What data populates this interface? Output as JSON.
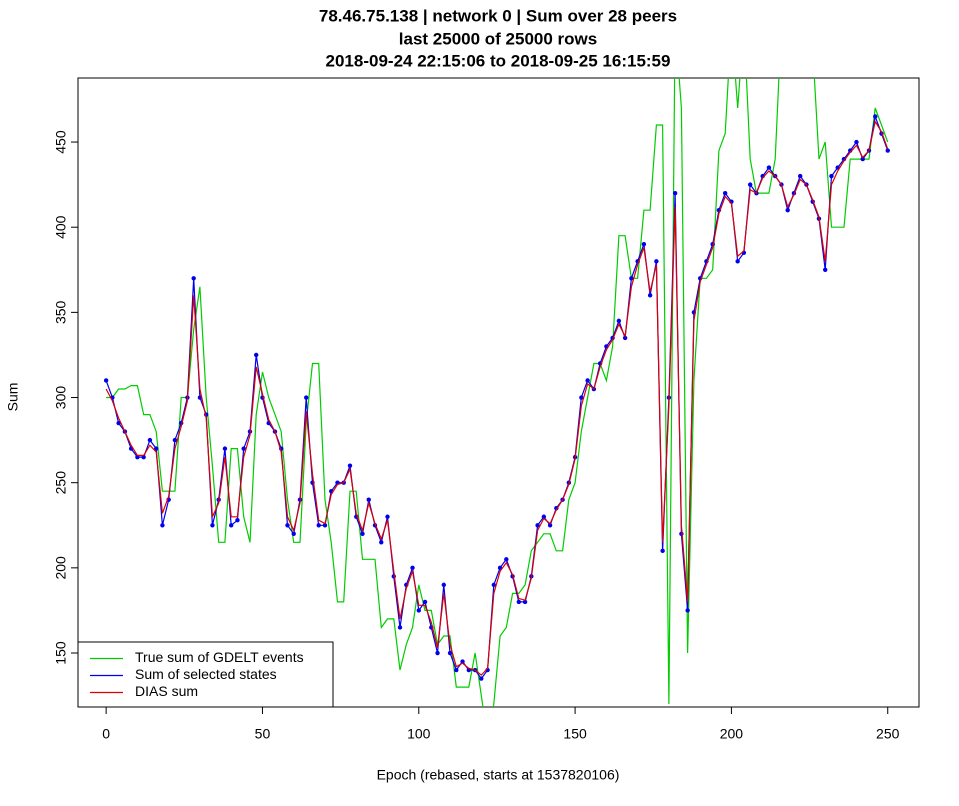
{
  "chart_data": {
    "type": "line",
    "title": [
      "78.46.75.138 | network 0 | Sum over 28 peers",
      "last 25000 of 25000 rows",
      "2018-09-24 22:15:06 to 2018-09-25 16:15:59"
    ],
    "xlabel": "Epoch (rebased, starts at 1537820106)",
    "ylabel": "Sum",
    "xlim": [
      -9,
      260
    ],
    "ylim": [
      118.3,
      487.6
    ],
    "xticks": [
      0,
      50,
      100,
      150,
      200,
      250
    ],
    "yticks": [
      150,
      200,
      250,
      300,
      350,
      400,
      450
    ],
    "legend": "bottom-left",
    "x": [
      0,
      2,
      4,
      6,
      8,
      10,
      12,
      14,
      16,
      18,
      20,
      22,
      24,
      26,
      28,
      30,
      32,
      34,
      36,
      38,
      40,
      42,
      44,
      46,
      48,
      50,
      52,
      54,
      56,
      58,
      60,
      62,
      64,
      66,
      68,
      70,
      72,
      74,
      76,
      78,
      80,
      82,
      84,
      86,
      88,
      90,
      92,
      94,
      96,
      98,
      100,
      102,
      104,
      106,
      108,
      110,
      112,
      114,
      116,
      118,
      120,
      122,
      124,
      126,
      128,
      130,
      132,
      134,
      136,
      138,
      140,
      142,
      144,
      146,
      148,
      150,
      152,
      154,
      156,
      158,
      160,
      162,
      164,
      166,
      168,
      170,
      172,
      174,
      176,
      178,
      180,
      182,
      184,
      186,
      188,
      190,
      192,
      194,
      196,
      198,
      200,
      202,
      204,
      206,
      208,
      210,
      212,
      214,
      216,
      218,
      220,
      222,
      224,
      226,
      228,
      230,
      232,
      234,
      236,
      238,
      240,
      242,
      244,
      246,
      248,
      250
    ],
    "series": [
      {
        "name": "True sum of GDELT events",
        "color": "#00cc00",
        "values": [
          300,
          300,
          305,
          305,
          307,
          307,
          290,
          290,
          280,
          245,
          245,
          245,
          300,
          300,
          340,
          365,
          300,
          260,
          215,
          215,
          270,
          270,
          230,
          215,
          290,
          315,
          300,
          290,
          280,
          240,
          215,
          215,
          285,
          320,
          320,
          240,
          215,
          180,
          180,
          245,
          245,
          205,
          205,
          205,
          165,
          170,
          170,
          140,
          155,
          165,
          190,
          175,
          175,
          155,
          160,
          160,
          130,
          130,
          130,
          150,
          125,
          100,
          120,
          160,
          165,
          185,
          185,
          190,
          210,
          215,
          220,
          220,
          210,
          210,
          240,
          250,
          280,
          300,
          320,
          320,
          310,
          330,
          395,
          395,
          370,
          370,
          410,
          410,
          460,
          460,
          120,
          520,
          470,
          150,
          310,
          370,
          370,
          375,
          445,
          455,
          520,
          470,
          520,
          440,
          420,
          420,
          420,
          440,
          520,
          500,
          500,
          520,
          500,
          505,
          440,
          450,
          400,
          400,
          400,
          440,
          440,
          440,
          440,
          470,
          460,
          450
        ]
      },
      {
        "name": "Sum of selected states",
        "color": "#0000ee",
        "values": [
          310,
          300,
          285,
          280,
          270,
          265,
          265,
          275,
          270,
          225,
          240,
          275,
          285,
          300,
          370,
          300,
          290,
          225,
          240,
          270,
          225,
          228,
          270,
          280,
          325,
          300,
          285,
          280,
          270,
          225,
          220,
          240,
          300,
          250,
          225,
          225,
          245,
          250,
          250,
          260,
          230,
          220,
          240,
          225,
          215,
          230,
          195,
          165,
          190,
          200,
          175,
          180,
          165,
          150,
          190,
          150,
          140,
          145,
          140,
          140,
          135,
          140,
          190,
          200,
          205,
          195,
          180,
          180,
          195,
          225,
          230,
          225,
          235,
          240,
          250,
          265,
          300,
          310,
          305,
          320,
          330,
          335,
          345,
          335,
          370,
          380,
          390,
          360,
          380,
          210,
          300,
          420,
          220,
          175,
          350,
          370,
          380,
          390,
          410,
          420,
          415,
          380,
          385,
          425,
          420,
          430,
          435,
          430,
          425,
          410,
          420,
          430,
          425,
          415,
          405,
          375,
          430,
          435,
          440,
          445,
          450,
          440,
          445,
          465,
          455,
          445
        ]
      },
      {
        "name": "DIAS sum",
        "color": "#dd0000",
        "values": [
          305,
          298,
          288,
          280,
          272,
          266,
          266,
          272,
          268,
          232,
          242,
          270,
          283,
          298,
          360,
          305,
          288,
          230,
          238,
          265,
          230,
          230,
          265,
          278,
          318,
          302,
          287,
          280,
          268,
          230,
          222,
          238,
          292,
          255,
          228,
          226,
          243,
          249,
          250,
          258,
          232,
          222,
          238,
          226,
          217,
          228,
          198,
          170,
          188,
          198,
          178,
          178,
          168,
          153,
          185,
          155,
          142,
          144,
          141,
          140,
          137,
          141,
          185,
          198,
          203,
          196,
          182,
          181,
          194,
          222,
          229,
          226,
          234,
          240,
          249,
          264,
          295,
          308,
          305,
          318,
          328,
          334,
          343,
          336,
          365,
          378,
          388,
          362,
          378,
          215,
          295,
          412,
          225,
          180,
          345,
          368,
          378,
          388,
          408,
          418,
          414,
          383,
          386,
          422,
          420,
          429,
          433,
          430,
          425,
          412,
          419,
          428,
          425,
          416,
          406,
          380,
          425,
          433,
          439,
          444,
          448,
          441,
          445,
          462,
          456,
          446
        ]
      }
    ]
  }
}
